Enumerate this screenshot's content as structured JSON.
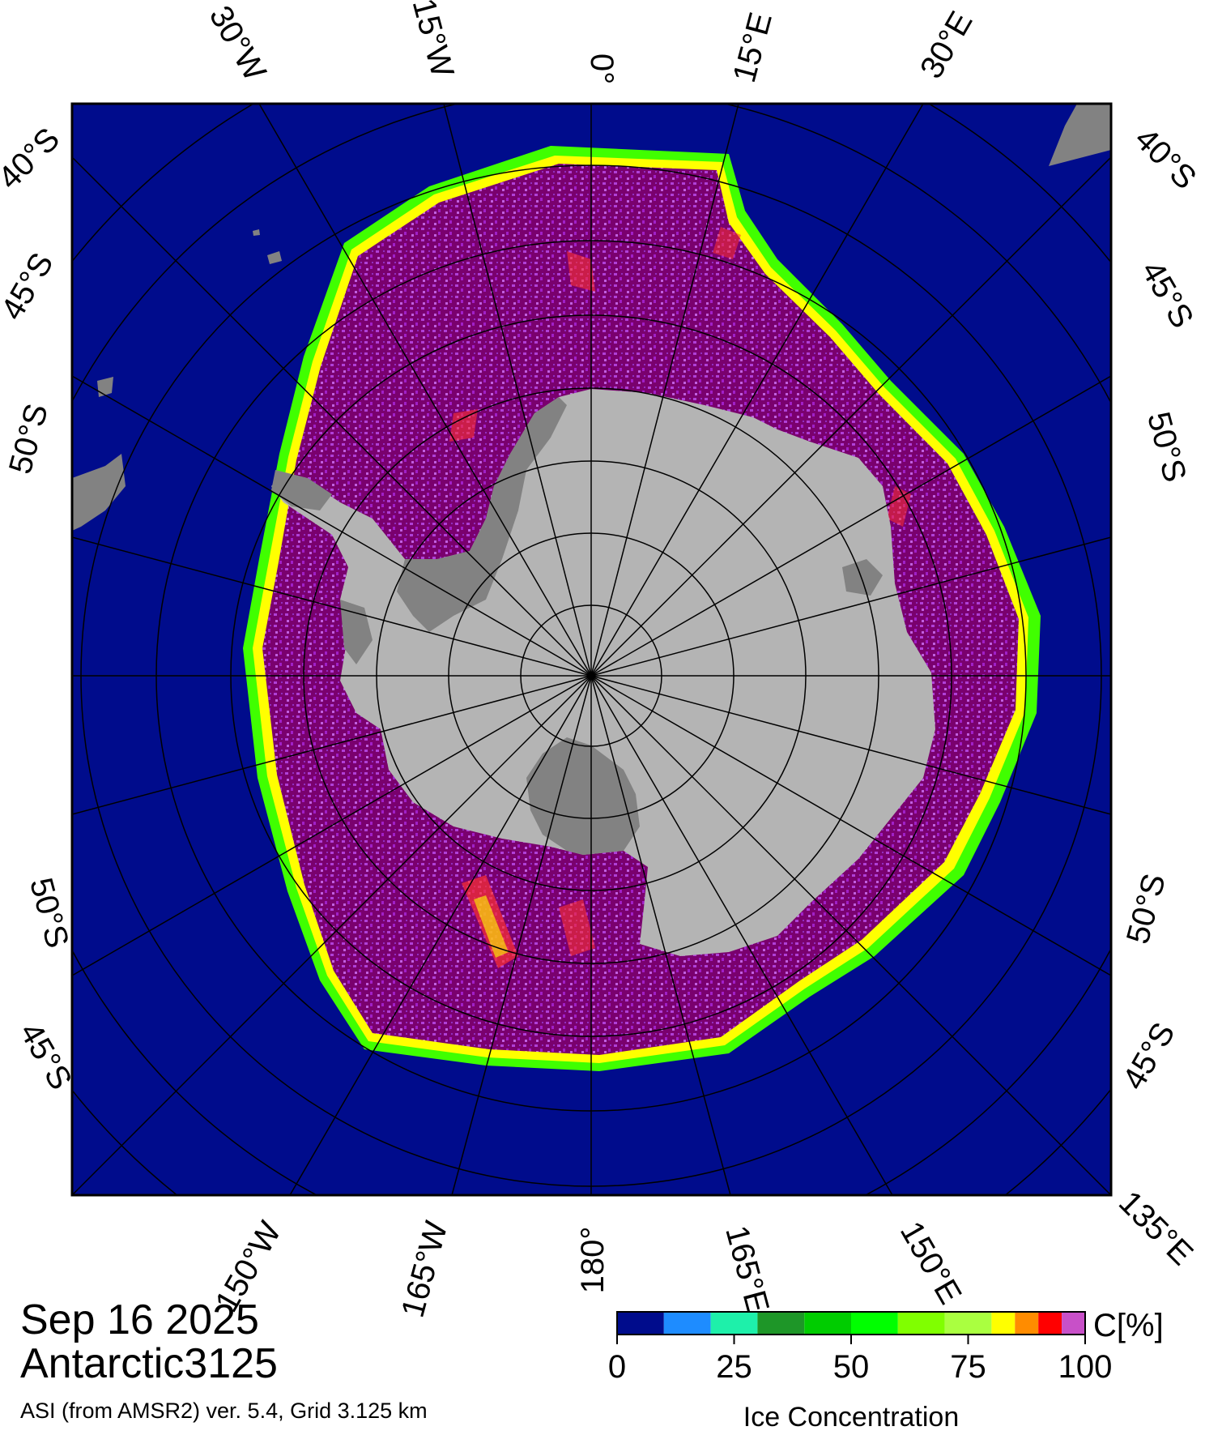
{
  "map": {
    "longitude_labels_top": [
      "30°W",
      "15°W",
      "0°",
      "15°E",
      "30°E"
    ],
    "longitude_labels_bottom": [
      "150°W",
      "165°W",
      "180°",
      "165°E",
      "150°E",
      "135°E"
    ],
    "latitude_labels_left": [
      "40°S",
      "45°S",
      "50°S",
      "50°S",
      "45°S"
    ],
    "latitude_labels_right": [
      "40°S",
      "45°S",
      "50°S",
      "50°S",
      "45°S"
    ],
    "colors": {
      "ocean": "#000c8c",
      "land": "#b4b4b4",
      "shelf": "#828282",
      "ice_high": "#7a006e",
      "ice_mid": "#a020c8",
      "ice_edge_yellow": "#ffff00",
      "ice_edge_green": "#40ff00",
      "ice_edge_red": "#ff2020"
    }
  },
  "info": {
    "date": "Sep 16 2025",
    "grid_name": "Antarctic3125",
    "source": "ASI (from AMSR2) ver. 5.4,  Grid 3.125 km"
  },
  "colorbar": {
    "unit": "C[%]",
    "title": "Ice Concentration",
    "ticks": [
      "0",
      "25",
      "50",
      "75",
      "100"
    ],
    "tick_values": [
      0,
      25,
      50,
      75,
      100
    ],
    "bins": [
      0,
      10,
      20,
      30,
      40,
      50,
      60,
      70,
      80,
      85,
      90,
      95,
      100
    ],
    "colors": [
      "#000c8c",
      "#1e8cff",
      "#1ef0aa",
      "#1e9628",
      "#00cc00",
      "#00ff00",
      "#80ff00",
      "#aaff40",
      "#ffff00",
      "#ff8c00",
      "#ff0000",
      "#c850c8",
      "#9600c8"
    ]
  }
}
